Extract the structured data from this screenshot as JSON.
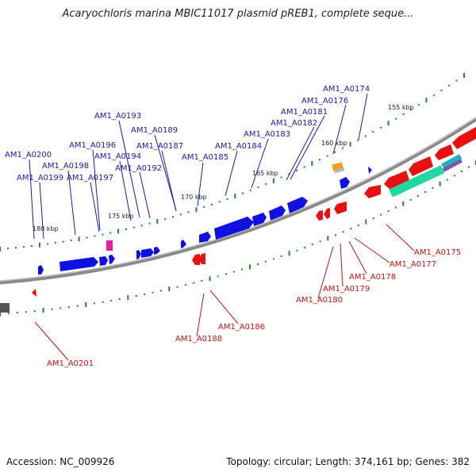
{
  "title": "Acaryochloris marina MBIC11017 plasmid pREB1, complete seque...",
  "footer": {
    "accession": "Accession: NC_009926",
    "topology": "Topology: circular; Length: 374,161 bp; Genes: 382"
  },
  "colors": {
    "backbone": "#8a8a8a",
    "forward_gene": "#1010e0",
    "reverse_gene": "#e81010",
    "forward_label": "#1a1ab0",
    "reverse_label": "#cc1111",
    "tick": "#228822",
    "other_feature_teal": "#20d8a0",
    "other_feature_orange": "#f0a020",
    "other_feature_magenta": "#e020a0",
    "other_feature_gray": "#555555",
    "other_feature_purple": "#7a5aa0"
  },
  "scale_labels": [
    "155 kbp",
    "160 kbp",
    "165 kbp",
    "170 kbp",
    "175 kbp",
    "180 kbp"
  ],
  "forward_genes": [
    "AM1_A0174",
    "AM1_A0176",
    "AM1_A0181",
    "AM1_A0182",
    "AM1_A0183",
    "AM1_A0184",
    "AM1_A0185",
    "AM1_A0187",
    "AM1_A0189",
    "AM1_A0192",
    "AM1_A0193",
    "AM1_A0194",
    "AM1_A0196",
    "AM1_A0197",
    "AM1_A0198",
    "AM1_A0199",
    "AM1_A0200"
  ],
  "reverse_genes": [
    "AM1_A0175",
    "AM1_A0177",
    "AM1_A0178",
    "AM1_A0179",
    "AM1_A0180",
    "AM1_A0186",
    "AM1_A0188",
    "AM1_A0201"
  ]
}
